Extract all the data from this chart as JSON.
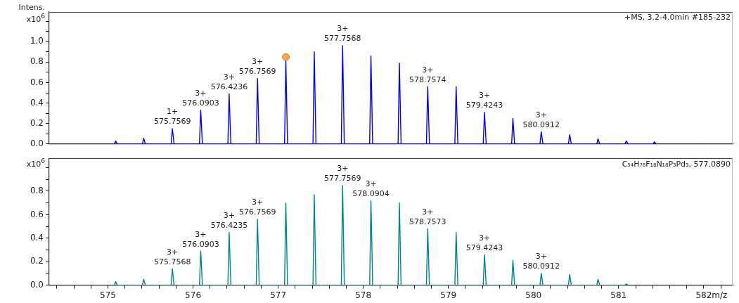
{
  "chart_data": [
    {
      "type": "line",
      "ylabel": "Intens.",
      "y2label": "x10$^{6}$",
      "xlim": [
        574.31,
        582.34
      ],
      "ylim": [
        0,
        1.29
      ],
      "xticks": [
        575,
        576,
        577,
        578,
        579,
        580,
        581,
        582
      ],
      "yticks": [
        {
          "value": 0,
          "label": "0.0"
        },
        {
          "value": 0.1,
          "label": null
        },
        0.2,
        {
          "value": 0.3,
          "label": null
        },
        0.4,
        {
          "value": 0.5,
          "label": null
        },
        0.6,
        {
          "value": 0.7,
          "label": null
        },
        0.8,
        {
          "value": 0.9,
          "label": null
        },
        {
          "value": 1.0,
          "label": "1.0"
        },
        {
          "value": 1.1,
          "label": null
        },
        {
          "value": 1.2,
          "label": null
        }
      ],
      "tick_labels": "y",
      "grid": false,
      "legend": false,
      "marker": "none",
      "series": [
        {
          "type": "line",
          "color": "#0000ff",
          "x": [
            575.075,
            575.09,
            575.11,
            575.405,
            575.42,
            575.44,
            575.742,
            575.757,
            575.777,
            576.075,
            576.09,
            576.11,
            576.409,
            576.424,
            576.444,
            576.742,
            576.757,
            576.777,
            577.075,
            577.09,
            577.11,
            577.409,
            577.424,
            577.444,
            577.742,
            577.757,
            577.777,
            578.075,
            578.09,
            578.11,
            578.409,
            578.424,
            578.444,
            578.742,
            578.757,
            578.777,
            579.076,
            579.091,
            579.111,
            579.409,
            579.424,
            579.444,
            579.743,
            579.758,
            579.778,
            580.076,
            580.091,
            580.111,
            580.41,
            580.425,
            580.445,
            580.743,
            580.758,
            580.778,
            581.075,
            581.09,
            581.11,
            581.405,
            581.42,
            581.44
          ],
          "values": [
            0,
            0.03,
            0,
            0,
            0.055,
            0,
            0,
            0.15,
            0,
            0,
            0.33,
            0,
            0,
            0.49,
            0,
            0,
            0.64,
            0,
            0,
            0.82,
            0,
            0,
            0.9,
            0,
            0,
            0.96,
            0,
            0,
            0.86,
            0,
            0,
            0.79,
            0,
            0,
            0.56,
            0,
            0,
            0.56,
            0,
            0,
            0.31,
            0,
            0,
            0.25,
            0,
            0,
            0.12,
            0,
            0,
            0.09,
            0,
            0,
            0.05,
            0,
            0,
            0.03,
            0,
            0,
            0.02,
            0
          ]
        },
        {
          "type": "scatter",
          "color": "#f0a848",
          "marker": "circle",
          "x": [
            577.09
          ],
          "values": [
            0.85
          ]
        }
      ],
      "annotations": [
        "+MS, 3.2-4.0min #185-232",
        {
          "text": "1+\n575.7569",
          "x": 575.757,
          "y": 0.15
        },
        {
          "text": "3+\n576.0903",
          "x": 576.09,
          "y": 0.33
        },
        {
          "text": "3+\n576.4236",
          "x": 576.424,
          "y": 0.49
        },
        {
          "text": "3+\n576.7569",
          "x": 576.757,
          "y": 0.64
        },
        {
          "text": "3+\n577.7568",
          "x": 577.757,
          "y": 0.96
        },
        {
          "text": "3+\n578.7574",
          "x": 578.757,
          "y": 0.56
        },
        {
          "text": "3+\n579.4243",
          "x": 579.424,
          "y": 0.31
        },
        {
          "text": "3+\n580.0912",
          "x": 580.091,
          "y": 0.12
        }
      ]
    },
    {
      "type": "line",
      "xlabel": "m/z",
      "y2label": "x10$^{6}$",
      "xlim": [
        574.31,
        582.34
      ],
      "ylim": [
        0,
        1.08
      ],
      "xticks": [
        {
          "value": 574.4,
          "label": null
        },
        {
          "value": 574.6,
          "label": null
        },
        {
          "value": 574.8,
          "label": null
        },
        575,
        {
          "value": 575.2,
          "label": null
        },
        {
          "value": 575.4,
          "label": null
        },
        {
          "value": 575.6,
          "label": null
        },
        {
          "value": 575.8,
          "label": null
        },
        576,
        {
          "value": 576.2,
          "label": null
        },
        {
          "value": 576.4,
          "label": null
        },
        {
          "value": 576.6,
          "label": null
        },
        {
          "value": 576.8,
          "label": null
        },
        577,
        {
          "value": 577.2,
          "label": null
        },
        {
          "value": 577.4,
          "label": null
        },
        {
          "value": 577.6,
          "label": null
        },
        {
          "value": 577.8,
          "label": null
        },
        578,
        {
          "value": 578.2,
          "label": null
        },
        {
          "value": 578.4,
          "label": null
        },
        {
          "value": 578.6,
          "label": null
        },
        {
          "value": 578.8,
          "label": null
        },
        579,
        {
          "value": 579.2,
          "label": null
        },
        {
          "value": 579.4,
          "label": null
        },
        {
          "value": 579.6,
          "label": null
        },
        {
          "value": 579.8,
          "label": null
        },
        580,
        {
          "value": 580.2,
          "label": null
        },
        {
          "value": 580.4,
          "label": null
        },
        {
          "value": 580.6,
          "label": null
        },
        {
          "value": 580.8,
          "label": null
        },
        581,
        {
          "value": 581.2,
          "label": null
        },
        {
          "value": 581.4,
          "label": null
        },
        {
          "value": 581.6,
          "label": null
        },
        {
          "value": 581.8,
          "label": null
        },
        582,
        {
          "value": 582.2,
          "label": null
        }
      ],
      "yticks": [
        {
          "value": 0,
          "label": "0.0"
        },
        {
          "value": 0.1,
          "label": null
        },
        0.2,
        {
          "value": 0.3,
          "label": null
        },
        0.4,
        {
          "value": 0.5,
          "label": null
        },
        0.6,
        {
          "value": 0.7,
          "label": null
        },
        0.8,
        {
          "value": 0.9,
          "label": null
        },
        {
          "value": 1.0,
          "label": null
        }
      ],
      "grid": false,
      "legend": false,
      "marker": "none",
      "series": [
        {
          "type": "line",
          "color": "#00868a",
          "x": [
            575.075,
            575.09,
            575.11,
            575.405,
            575.42,
            575.44,
            575.742,
            575.757,
            575.777,
            576.075,
            576.09,
            576.11,
            576.409,
            576.424,
            576.444,
            576.742,
            576.757,
            576.777,
            577.075,
            577.09,
            577.11,
            577.409,
            577.424,
            577.444,
            577.742,
            577.757,
            577.777,
            578.075,
            578.09,
            578.11,
            578.409,
            578.424,
            578.444,
            578.742,
            578.757,
            578.777,
            579.076,
            579.091,
            579.111,
            579.409,
            579.424,
            579.444,
            579.743,
            579.758,
            579.778,
            580.076,
            580.091,
            580.111,
            580.41,
            580.425,
            580.445,
            580.743,
            580.758,
            580.778,
            581.075,
            581.09,
            581.11
          ],
          "values": [
            0,
            0.03,
            0,
            0,
            0.05,
            0,
            0,
            0.14,
            0,
            0,
            0.29,
            0,
            0,
            0.45,
            0,
            0,
            0.56,
            0,
            0,
            0.7,
            0,
            0,
            0.77,
            0,
            0,
            0.85,
            0,
            0,
            0.72,
            0,
            0,
            0.7,
            0,
            0,
            0.48,
            0,
            0,
            0.45,
            0,
            0,
            0.26,
            0,
            0,
            0.21,
            0,
            0,
            0.1,
            0,
            0,
            0.09,
            0,
            0,
            0.05,
            0,
            0,
            0.01,
            0
          ]
        }
      ],
      "annotations": [
        "C₅₄H₇₈F₁₈N₁₈P₃Pd₃, 577.0890",
        {
          "text": "3+\n575.7568",
          "x": 575.757,
          "y": 0.14
        },
        {
          "text": "3+\n576.0903",
          "x": 576.09,
          "y": 0.29
        },
        {
          "text": "3+\n576.4235",
          "x": 576.424,
          "y": 0.45
        },
        {
          "text": "3+\n576.7569",
          "x": 576.757,
          "y": 0.56
        },
        {
          "text": "3+\n577.7569",
          "x": 577.757,
          "y": 0.85
        },
        {
          "text": "3+\n578.0904",
          "x": 578.09,
          "y": 0.72
        },
        {
          "text": "3+\n578.7573",
          "x": 578.757,
          "y": 0.48
        },
        {
          "text": "3+\n579.4243",
          "x": 579.424,
          "y": 0.26
        },
        {
          "text": "3+\n580.0912",
          "x": 580.091,
          "y": 0.1
        }
      ]
    }
  ]
}
